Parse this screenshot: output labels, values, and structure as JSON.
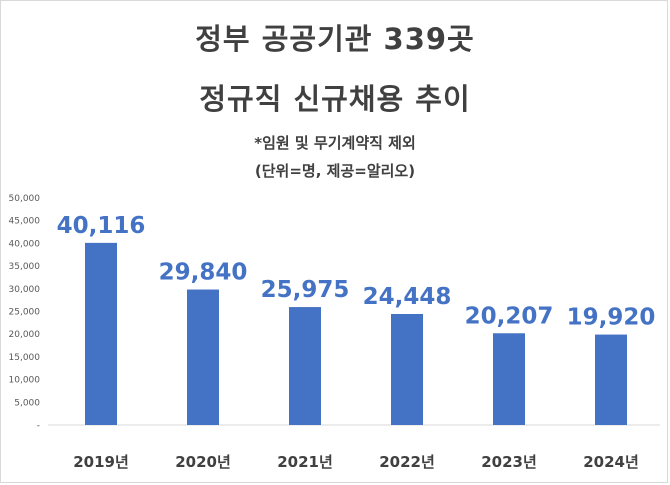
{
  "title_line1": "정부 공공기관 339곳",
  "title_line2": "정규직 신규채용 추이",
  "note": "*임원 및 무기계약직 제외",
  "unit_source": "(단위=명, 제공=알리오)",
  "colors": {
    "bar": "#4472c4",
    "label": "#4472c4",
    "text": "#404040"
  },
  "chart_data": {
    "type": "bar",
    "categories": [
      "2019년",
      "2020년",
      "2021년",
      "2022년",
      "2023년",
      "2024년"
    ],
    "values": [
      40116,
      29840,
      25975,
      24448,
      20207,
      19920
    ],
    "data_labels": [
      "40,116",
      "29,840",
      "25,975",
      "24,448",
      "20,207",
      "19,920"
    ],
    "yticks": [
      "-",
      "5,000",
      "10,000",
      "15,000",
      "20,000",
      "25,000",
      "30,000",
      "35,000",
      "40,000",
      "45,000",
      "50,000"
    ],
    "ylim": [
      0,
      50000
    ],
    "grid": false,
    "title": "정부 공공기관 339곳 정규직 신규채용 추이",
    "xlabel": "",
    "ylabel": ""
  }
}
